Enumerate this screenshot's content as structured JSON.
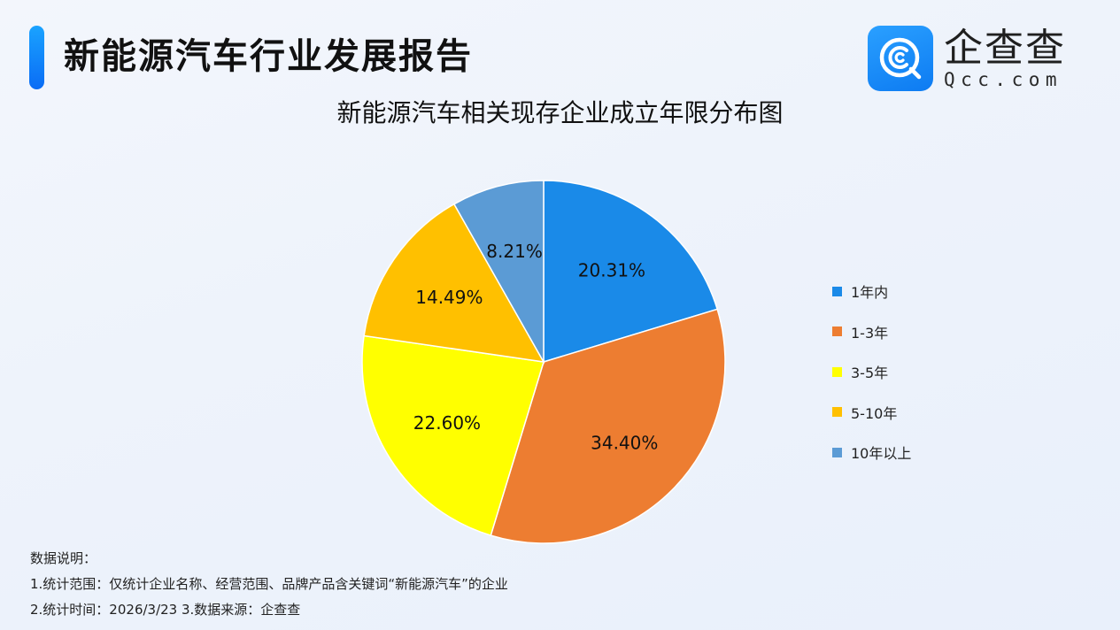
{
  "header": {
    "title": "新能源汽车行业发展报告",
    "accent_color": "#1a8cff"
  },
  "logo": {
    "cn": "企查查",
    "en": "Qcc.com",
    "icon": "qcc-logo-icon",
    "tile_color": "#1485f5"
  },
  "chart_data": {
    "type": "pie",
    "title": "新能源汽车相关现存企业成立年限分布图",
    "categories": [
      "1年内",
      "1-3年",
      "3-5年",
      "5-10年",
      "10年以上"
    ],
    "values": [
      20.31,
      34.4,
      22.6,
      14.49,
      8.21
    ],
    "labels": [
      "20.31%",
      "34.40%",
      "22.60%",
      "14.49%",
      "8.21%"
    ],
    "colors": [
      "#1a8ae8",
      "#ed7d31",
      "#ffff00",
      "#ffc000",
      "#5b9bd5"
    ],
    "start_angle": "12 o'clock",
    "direction": "clockwise",
    "legend_position": "right",
    "unit": "%"
  },
  "legend": {
    "items": [
      {
        "label": "1年内",
        "color": "#1a8ae8"
      },
      {
        "label": "1-3年",
        "color": "#ed7d31"
      },
      {
        "label": "3-5年",
        "color": "#ffff00"
      },
      {
        "label": "5-10年",
        "color": "#ffc000"
      },
      {
        "label": "10年以上",
        "color": "#5b9bd5"
      }
    ]
  },
  "notes": {
    "heading": "数据说明：",
    "line1": "1.统计范围：仅统计企业名称、经营范围、品牌产品含关键词“新能源汽车”的企业",
    "line2": "2.统计时间：2026/3/23  3.数据来源：企查查"
  }
}
